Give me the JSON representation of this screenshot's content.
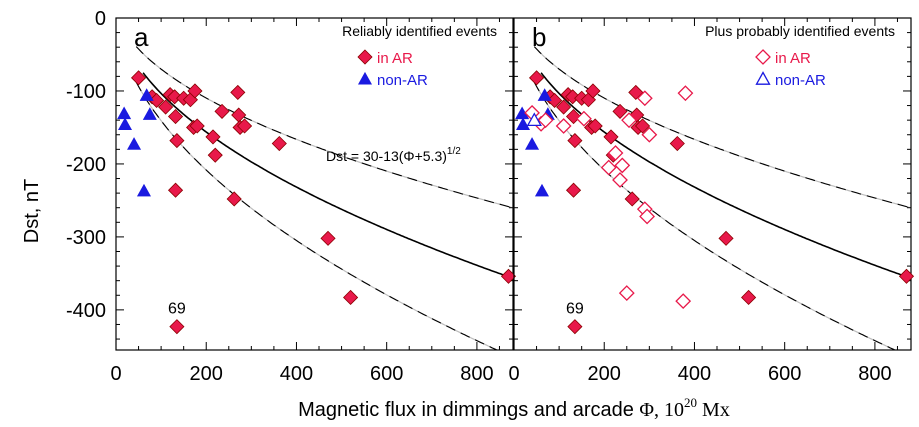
{
  "colors": {
    "ar_marker": "#e8194a",
    "ar_outline": "#8b0000",
    "nonar_marker": "#1a1ae0",
    "ar_open": "#e8194a",
    "ar_label": "#e8194a",
    "nonar_label": "#1a1ae0",
    "fit_line": "#000000",
    "band_dash": "#000000",
    "band_gray": "#bdbdbd"
  },
  "chart_data": {
    "type": "scatter",
    "xlim": [
      0,
      880
    ],
    "ylim": [
      -455,
      0
    ],
    "x_ticks": [
      0,
      200,
      400,
      600,
      800
    ],
    "y_ticks": [
      0,
      -100,
      -200,
      -300,
      -400
    ],
    "ylabel": "Dst, nT",
    "xlabel": {
      "main": "Magnetic flux in dimmings and arcade  ",
      "phi": "Φ",
      "sep": ", ",
      "base": "10",
      "exp": "20",
      "unit": " Mx"
    },
    "fit": {
      "label": "Dst = 30-13(Φ+5.3)",
      "exponent": "1/2",
      "coef_a": 30,
      "coef_b": 13,
      "offset": 5.3,
      "band_lower_factor": 1.28,
      "band_upper_factor": 0.75
    },
    "panels": [
      {
        "letter": "a",
        "legend_title": "Reliably identified events",
        "legend_entries": [
          {
            "label": "in AR",
            "marker": "filled-diamond"
          },
          {
            "label": "non-AR",
            "marker": "filled-triangle"
          }
        ],
        "show_formula": true,
        "annotation": {
          "text": "69",
          "x": 135,
          "y": -397
        },
        "series": [
          {
            "name": "in AR",
            "marker": "filled-diamond",
            "points": [
              [
                50,
                -82
              ],
              [
                80,
                -108
              ],
              [
                90,
                -113
              ],
              [
                110,
                -122
              ],
              [
                120,
                -105
              ],
              [
                130,
                -108
              ],
              [
                132,
                -135
              ],
              [
                135,
                -168
              ],
              [
                150,
                -110
              ],
              [
                165,
                -112
              ],
              [
                172,
                -150
              ],
              [
                175,
                -100
              ],
              [
                180,
                -148
              ],
              [
                215,
                -163
              ],
              [
                220,
                -188
              ],
              [
                235,
                -128
              ],
              [
                262,
                -248
              ],
              [
                270,
                -102
              ],
              [
                272,
                -133
              ],
              [
                275,
                -150
              ],
              [
                285,
                -148
              ],
              [
                362,
                -172
              ],
              [
                470,
                -302
              ],
              [
                520,
                -383
              ],
              [
                870,
                -354
              ],
              [
                132,
                -236
              ],
              [
                135,
                -423
              ]
            ]
          },
          {
            "name": "non-AR",
            "marker": "filled-triangle",
            "points": [
              [
                18,
                -131
              ],
              [
                20,
                -146
              ],
              [
                40,
                -173
              ],
              [
                62,
                -237
              ],
              [
                68,
                -106
              ],
              [
                75,
                -132
              ]
            ]
          }
        ]
      },
      {
        "letter": "b",
        "legend_title": "Plus probably identified events",
        "legend_entries": [
          {
            "label": "in AR",
            "marker": "open-diamond"
          },
          {
            "label": "non-AR",
            "marker": "open-triangle"
          }
        ],
        "show_formula": false,
        "annotation": {
          "text": "69",
          "x": 135,
          "y": -397
        },
        "series": [
          {
            "name": "in AR",
            "marker": "filled-diamond",
            "points": [
              [
                50,
                -82
              ],
              [
                80,
                -108
              ],
              [
                90,
                -113
              ],
              [
                110,
                -122
              ],
              [
                120,
                -105
              ],
              [
                130,
                -108
              ],
              [
                132,
                -135
              ],
              [
                135,
                -168
              ],
              [
                150,
                -110
              ],
              [
                165,
                -112
              ],
              [
                172,
                -150
              ],
              [
                175,
                -100
              ],
              [
                180,
                -148
              ],
              [
                215,
                -163
              ],
              [
                220,
                -188
              ],
              [
                235,
                -128
              ],
              [
                262,
                -248
              ],
              [
                270,
                -102
              ],
              [
                272,
                -133
              ],
              [
                275,
                -150
              ],
              [
                285,
                -148
              ],
              [
                362,
                -172
              ],
              [
                470,
                -302
              ],
              [
                520,
                -383
              ],
              [
                870,
                -354
              ],
              [
                132,
                -236
              ],
              [
                135,
                -423
              ]
            ]
          },
          {
            "name": "non-AR",
            "marker": "filled-triangle",
            "points": [
              [
                18,
                -131
              ],
              [
                20,
                -146
              ],
              [
                40,
                -173
              ],
              [
                62,
                -237
              ],
              [
                68,
                -106
              ],
              [
                75,
                -132
              ]
            ]
          },
          {
            "name": "in AR",
            "marker": "open-diamond",
            "points": [
              [
                40,
                -130
              ],
              [
                60,
                -145
              ],
              [
                70,
                -140
              ],
              [
                110,
                -148
              ],
              [
                155,
                -138
              ],
              [
                210,
                -205
              ],
              [
                225,
                -185
              ],
              [
                235,
                -222
              ],
              [
                240,
                -202
              ],
              [
                250,
                -377
              ],
              [
                255,
                -140
              ],
              [
                290,
                -262
              ],
              [
                290,
                -110
              ],
              [
                295,
                -272
              ],
              [
                300,
                -160
              ],
              [
                375,
                -388
              ],
              [
                380,
                -103
              ]
            ]
          },
          {
            "name": "non-AR",
            "marker": "open-triangle",
            "points": [
              [
                45,
                -140
              ]
            ]
          }
        ]
      }
    ]
  }
}
